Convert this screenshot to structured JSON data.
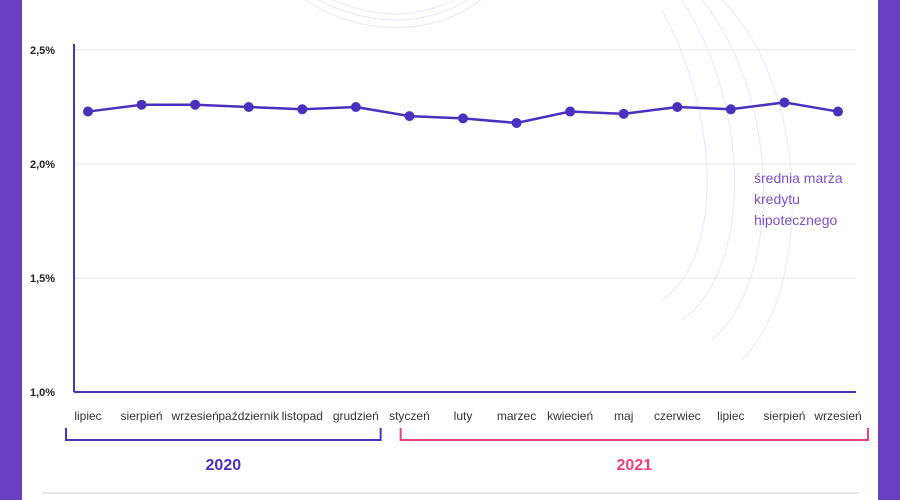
{
  "colors": {
    "line": "#4b2fbf",
    "year2020": "#4b2fbf",
    "year2021": "#f0407a",
    "annotation": "#7a4fd0",
    "month_default": "#333333"
  },
  "chart_data": {
    "type": "line",
    "title": "",
    "xlabel": "",
    "ylabel": "",
    "ylim": [
      1.0,
      2.5
    ],
    "y_ticks": [
      "2,5%",
      "2,0%",
      "1,5%",
      "1,0%"
    ],
    "y_tick_values": [
      2.5,
      2.0,
      1.5,
      1.0
    ],
    "grid": true,
    "categories": [
      "lipiec",
      "sierpień",
      "wrzesień",
      "październik",
      "listopad",
      "grudzień",
      "styczeń",
      "luty",
      "marzec",
      "kwiecień",
      "maj",
      "czerwiec",
      "lipiec",
      "sierpień",
      "wrzesień"
    ],
    "highlight_from_index": 12,
    "series": [
      {
        "name": "",
        "values": [
          2.23,
          2.26,
          2.26,
          2.25,
          2.24,
          2.25,
          2.21,
          2.2,
          2.18,
          2.23,
          2.22,
          2.25,
          2.24,
          2.27,
          2.23
        ]
      }
    ],
    "annotation": {
      "lines": [
        "średnia marża",
        "kredytu",
        "hipotecznego"
      ]
    },
    "year_groups": [
      {
        "label": "2020",
        "from": 0,
        "to": 5
      },
      {
        "label": "2021",
        "from": 6,
        "to": 14
      }
    ]
  }
}
